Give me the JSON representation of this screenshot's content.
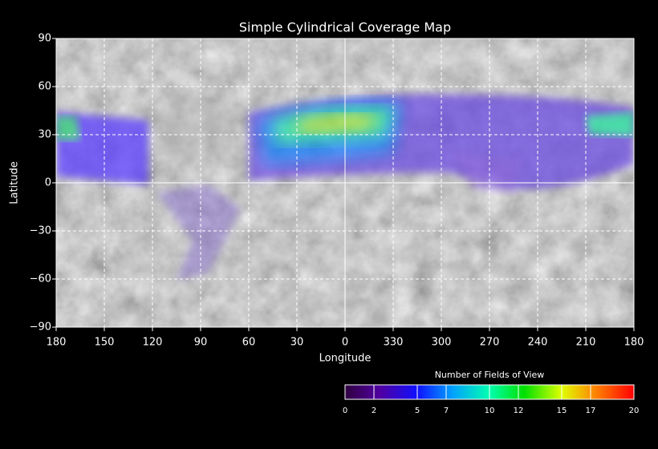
{
  "chart_data": {
    "type": "map",
    "title": "Simple Cylindrical Coverage Map",
    "x_label": "Longitude",
    "y_label": "Latitude",
    "xlim": [
      180,
      -180
    ],
    "ylim": [
      -90,
      90
    ],
    "xticks": [
      180,
      150,
      120,
      90,
      60,
      30,
      0,
      {
        "value": -30,
        "label": "330"
      },
      {
        "value": -60,
        "label": "300"
      },
      {
        "value": -90,
        "label": "270"
      },
      {
        "value": -120,
        "label": "240"
      },
      {
        "value": -150,
        "label": "210"
      },
      {
        "value": -180,
        "label": "180"
      }
    ],
    "yticks": [
      {
        "value": -90,
        "label": "−90"
      },
      {
        "value": -60,
        "label": "−60"
      },
      {
        "value": -30,
        "label": "−30"
      },
      0,
      30,
      60,
      90
    ],
    "grid": true,
    "colorbar": {
      "title": "Number of Fields of View",
      "lim": [
        0,
        20
      ],
      "ticks": [
        0,
        2,
        5,
        7,
        10,
        12,
        15,
        17,
        20
      ]
    }
  }
}
